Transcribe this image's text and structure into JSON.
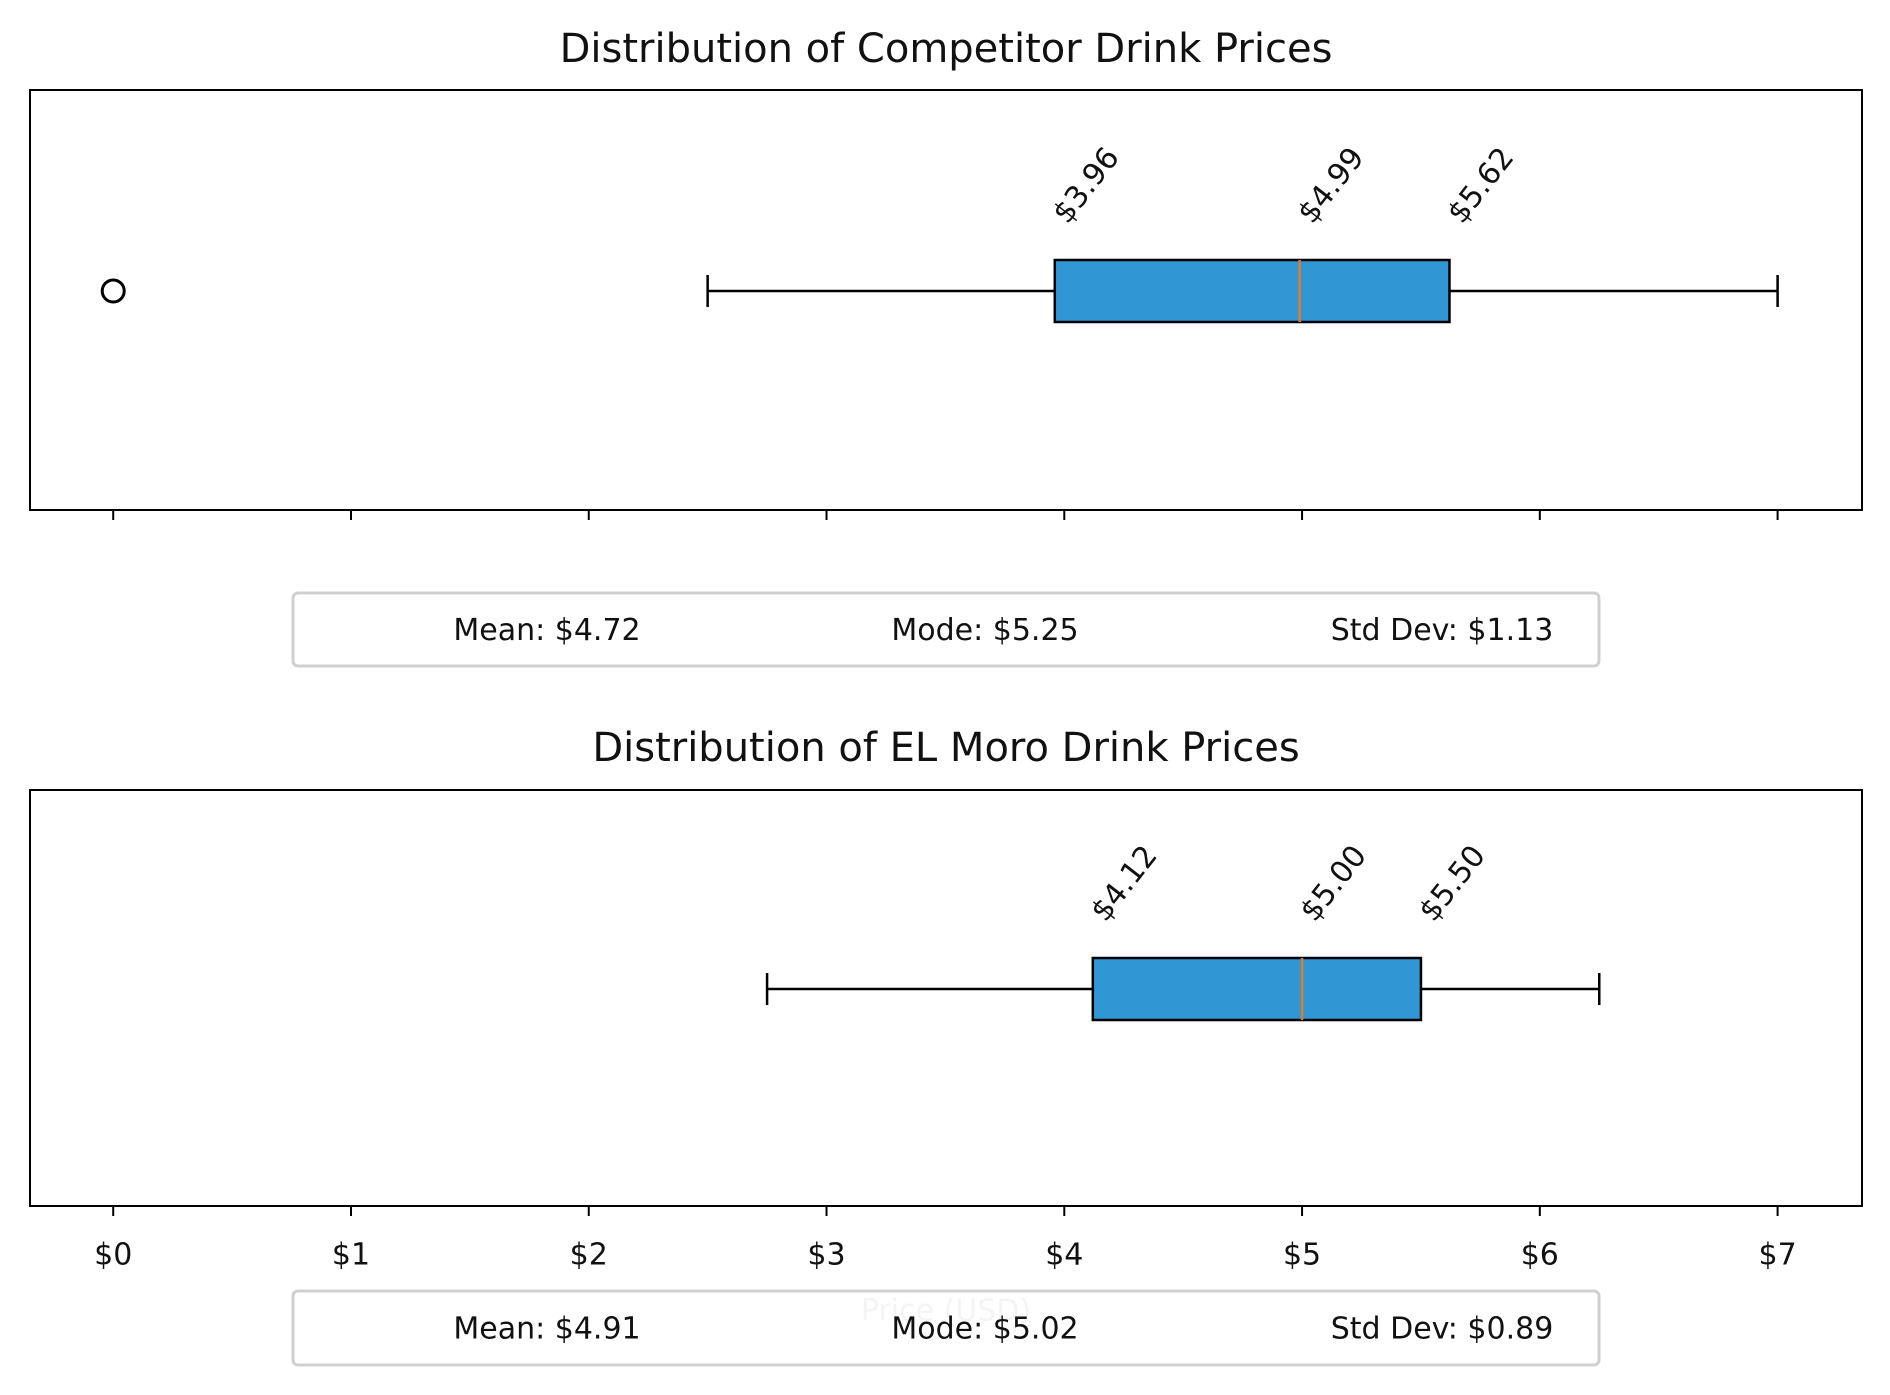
{
  "chart_data": [
    {
      "type": "box",
      "title": "Distribution of Competitor Drink Prices",
      "boxes": [
        {
          "whislo": 2.5,
          "q1": 3.96,
          "med": 4.99,
          "q3": 5.62,
          "whishi": 7.0,
          "fliers": [
            0
          ],
          "value_labels": [
            "$3.96",
            "$4.99",
            "$5.62"
          ]
        }
      ],
      "color": "#3096d4",
      "median_color": "#e07b2a",
      "xlim": [
        -0.35,
        7.355
      ],
      "xticks": [
        0,
        1,
        2,
        3,
        4,
        5,
        6,
        7
      ],
      "stats": [
        "Mean: $4.72",
        "Mode: $5.25",
        "Std Dev: $1.13"
      ]
    },
    {
      "type": "box",
      "title": "Distribution of EL Moro Drink Prices",
      "boxes": [
        {
          "whislo": 2.75,
          "q1": 4.12,
          "med": 5.0,
          "q3": 5.5,
          "whishi": 6.25,
          "fliers": [],
          "value_labels": [
            "$4.12",
            "$5.00",
            "$5.50"
          ]
        }
      ],
      "color": "#3096d4",
      "median_color": "#e07b2a",
      "xlim": [
        -0.35,
        7.355
      ],
      "xticks": [
        {
          "value": 0,
          "label": "$0"
        },
        {
          "value": 1,
          "label": "$1"
        },
        {
          "value": 2,
          "label": "$2"
        },
        {
          "value": 3,
          "label": "$3"
        },
        {
          "value": 4,
          "label": "$4"
        },
        {
          "value": 5,
          "label": "$5"
        },
        {
          "value": 6,
          "label": "$6"
        },
        {
          "value": 7,
          "label": "$7"
        }
      ],
      "xlabel": "Price (USD)",
      "stats": [
        "Mean: $4.91",
        "Mode: $5.02",
        "Std Dev: $0.89"
      ]
    }
  ]
}
